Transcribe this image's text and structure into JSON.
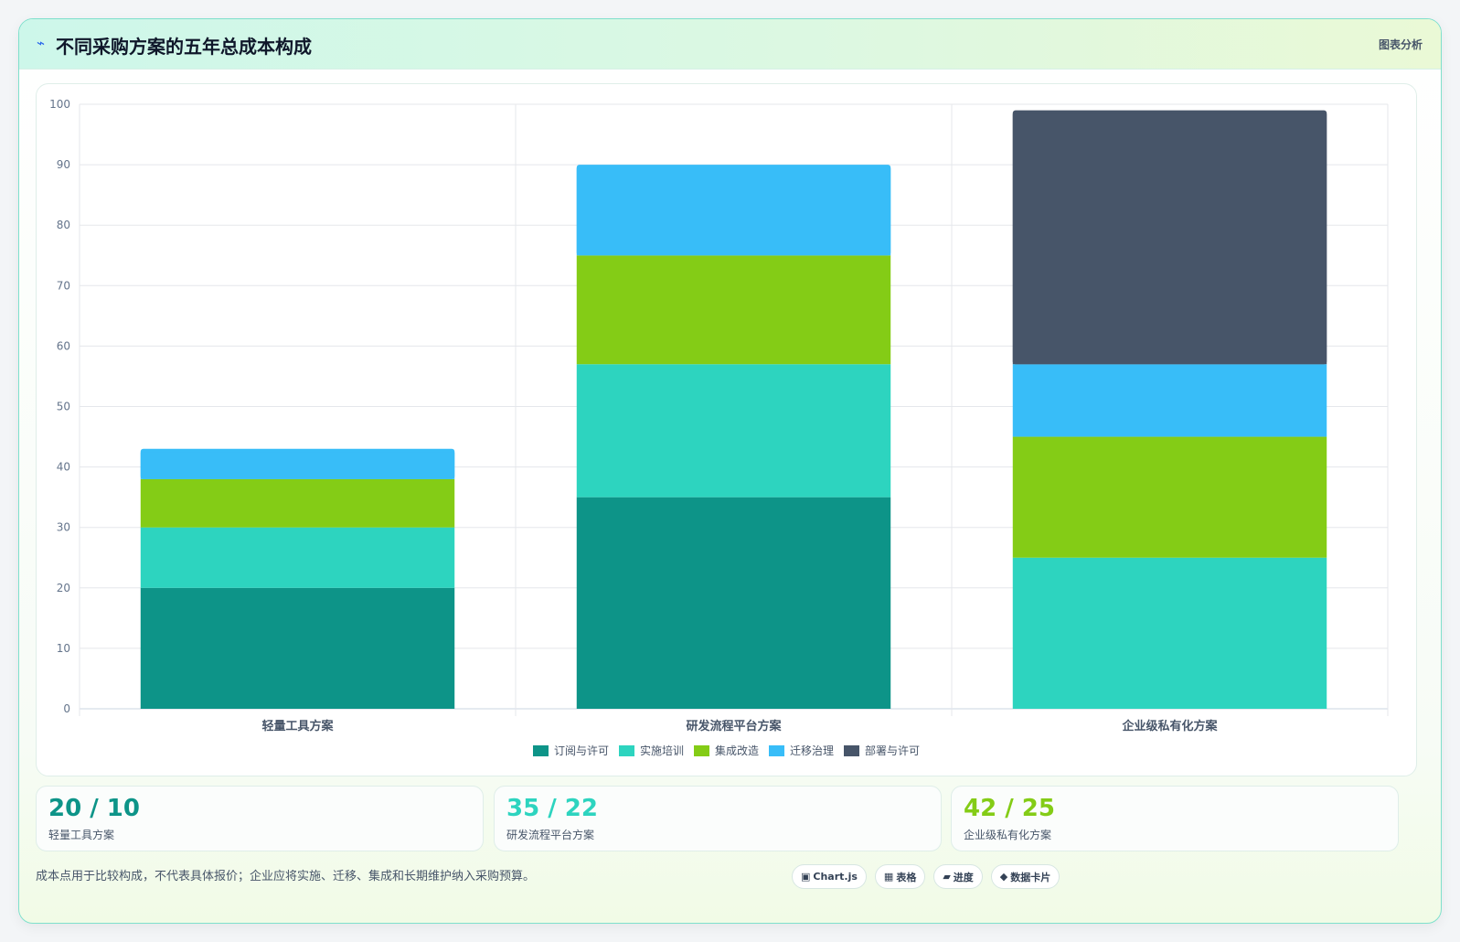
{
  "header": {
    "icon": "bolt-icon",
    "title": "不同采购方案的五年总成本构成",
    "tag": "图表分析"
  },
  "chart_data": {
    "type": "bar",
    "stacked": true,
    "title": "",
    "xlabel": "",
    "ylabel": "",
    "ylim": [
      0,
      100
    ],
    "yticks": [
      0,
      10,
      20,
      30,
      40,
      50,
      60,
      70,
      80,
      90,
      100
    ],
    "grid": true,
    "legend_position": "bottom",
    "categories": [
      "轻量工具方案",
      "研发流程平台方案",
      "企业级私有化方案"
    ],
    "series": [
      {
        "name": "订阅与许可",
        "color": "#0d9488",
        "values": [
          20,
          35,
          0
        ]
      },
      {
        "name": "实施培训",
        "color": "#2dd4bf",
        "values": [
          10,
          22,
          25
        ]
      },
      {
        "name": "集成改造",
        "color": "#84cc16",
        "values": [
          8,
          18,
          20
        ]
      },
      {
        "name": "迁移治理",
        "color": "#38bdf8",
        "values": [
          5,
          15,
          12
        ]
      },
      {
        "name": "部署与许可",
        "color": "#475569",
        "values": [
          0,
          0,
          42
        ]
      }
    ]
  },
  "stats": [
    {
      "value": "20 / 10",
      "label": "轻量工具方案",
      "color": "#0d9488"
    },
    {
      "value": "35 / 22",
      "label": "研发流程平台方案",
      "color": "#2dd4bf"
    },
    {
      "value": "42 / 25",
      "label": "企业级私有化方案",
      "color": "#84cc16"
    }
  ],
  "footer": {
    "note": "成本点用于比较构成，不代表具体报价；企业应将实施、迁移、集成和长期维护纳入采购预算。",
    "chips": [
      {
        "icon": "▣",
        "label": "Chart.js"
      },
      {
        "icon": "▦",
        "label": "表格"
      },
      {
        "icon": "▰",
        "label": "进度"
      },
      {
        "icon": "◆",
        "label": "数据卡片"
      }
    ]
  }
}
